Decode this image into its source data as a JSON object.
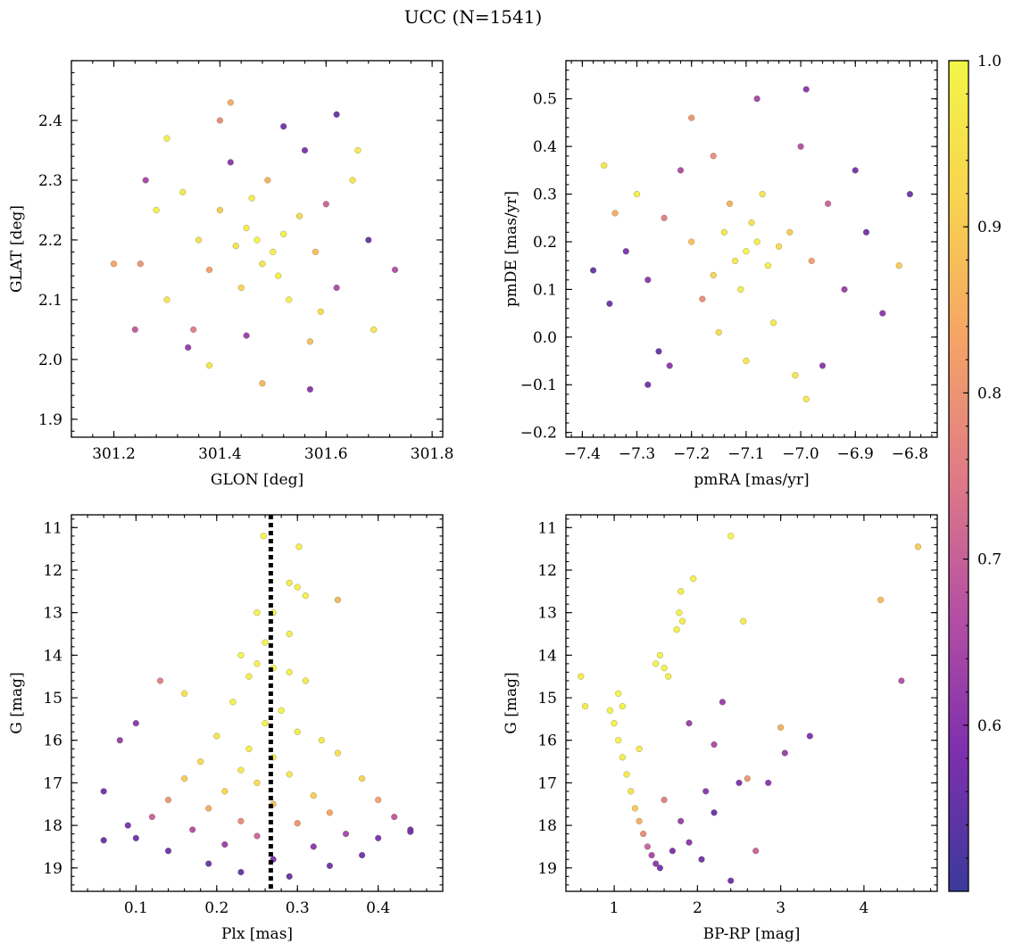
{
  "figure": {
    "title": "UCC (N=1541)"
  },
  "colorbar": {
    "range": [
      0.5,
      1.0
    ],
    "ticks": [
      0.6,
      0.7,
      0.8,
      0.9,
      1.0
    ],
    "tick_labels": [
      "0.6",
      "0.7",
      "0.8",
      "0.9",
      "1.0"
    ],
    "colormap": "plasma",
    "colormap_stops": [
      "#3b3a9a",
      "#7d2fae",
      "#b54fa3",
      "#df7b86",
      "#f5a465",
      "#f8d34f",
      "#f2f547"
    ]
  },
  "chart_data": [
    {
      "id": "glon-glat",
      "type": "scatter",
      "xlabel": "GLON [deg]",
      "ylabel": "GLAT [deg]",
      "xlim": [
        301.12,
        301.82
      ],
      "ylim": [
        1.87,
        2.5
      ],
      "xticks": [
        301.2,
        301.4,
        301.6,
        301.8
      ],
      "xtick_labels": [
        "301.2",
        "301.4",
        "301.6",
        "301.8"
      ],
      "yticks": [
        1.9,
        2.0,
        2.1,
        2.2,
        2.3,
        2.4
      ],
      "ytick_labels": [
        "1.9",
        "2.0",
        "2.1",
        "2.2",
        "2.3",
        "2.4"
      ],
      "points": [
        [
          301.47,
          2.2,
          1.0
        ],
        [
          301.5,
          2.18,
          0.98
        ],
        [
          301.45,
          2.22,
          0.97
        ],
        [
          301.52,
          2.21,
          0.99
        ],
        [
          301.48,
          2.16,
          0.96
        ],
        [
          301.43,
          2.19,
          0.95
        ],
        [
          301.55,
          2.24,
          0.93
        ],
        [
          301.4,
          2.25,
          0.9
        ],
        [
          301.46,
          2.27,
          0.97
        ],
        [
          301.51,
          2.14,
          0.98
        ],
        [
          301.44,
          2.12,
          0.92
        ],
        [
          301.58,
          2.18,
          0.88
        ],
        [
          301.36,
          2.2,
          0.94
        ],
        [
          301.49,
          2.3,
          0.85
        ],
        [
          301.53,
          2.1,
          0.99
        ],
        [
          301.38,
          2.15,
          0.82
        ],
        [
          301.6,
          2.26,
          0.7
        ],
        [
          301.33,
          2.28,
          0.97
        ],
        [
          301.62,
          2.12,
          0.65
        ],
        [
          301.3,
          2.1,
          0.96
        ],
        [
          301.42,
          2.33,
          0.6
        ],
        [
          301.56,
          2.35,
          0.58
        ],
        [
          301.35,
          2.05,
          0.75
        ],
        [
          301.65,
          2.3,
          0.96
        ],
        [
          301.28,
          2.25,
          0.98
        ],
        [
          301.45,
          2.04,
          0.62
        ],
        [
          301.57,
          2.03,
          0.88
        ],
        [
          301.25,
          2.16,
          0.8
        ],
        [
          301.68,
          2.2,
          0.55
        ],
        [
          301.4,
          2.4,
          0.78
        ],
        [
          301.52,
          2.39,
          0.57
        ],
        [
          301.38,
          1.99,
          0.97
        ],
        [
          301.48,
          1.96,
          0.86
        ],
        [
          301.2,
          2.16,
          0.83
        ],
        [
          301.73,
          2.15,
          0.66
        ],
        [
          301.62,
          2.41,
          0.55
        ],
        [
          301.57,
          1.95,
          0.6
        ],
        [
          301.42,
          2.43,
          0.84
        ],
        [
          301.3,
          2.37,
          0.98
        ],
        [
          301.69,
          2.05,
          0.96
        ],
        [
          301.24,
          2.05,
          0.68
        ],
        [
          301.34,
          2.02,
          0.61
        ],
        [
          301.66,
          2.35,
          0.97
        ],
        [
          301.26,
          2.3,
          0.64
        ],
        [
          301.59,
          2.08,
          0.94
        ]
      ]
    },
    {
      "id": "pmra-pmde",
      "type": "scatter",
      "xlabel": "pmRA [mas/yr]",
      "ylabel": "pmDE [mas/yr]",
      "xlim": [
        -7.43,
        -6.75
      ],
      "ylim": [
        -0.21,
        0.58
      ],
      "xticks": [
        -7.4,
        -7.3,
        -7.2,
        -7.1,
        -7.0,
        -6.9,
        -6.8
      ],
      "xtick_labels": [
        "−7.4",
        "−7.3",
        "−7.2",
        "−7.1",
        "−7.0",
        "−6.9",
        "−6.8"
      ],
      "yticks": [
        -0.2,
        -0.1,
        0.0,
        0.1,
        0.2,
        0.3,
        0.4,
        0.5
      ],
      "ytick_labels": [
        "−0.2",
        "−0.1",
        "0.0",
        "0.1",
        "0.2",
        "0.3",
        "0.4",
        "0.5"
      ],
      "points": [
        [
          -7.1,
          0.18,
          1.0
        ],
        [
          -7.08,
          0.2,
          0.98
        ],
        [
          -7.12,
          0.16,
          0.97
        ],
        [
          -7.06,
          0.15,
          0.99
        ],
        [
          -7.14,
          0.22,
          0.96
        ],
        [
          -7.09,
          0.24,
          0.95
        ],
        [
          -7.04,
          0.19,
          0.93
        ],
        [
          -7.16,
          0.13,
          0.92
        ],
        [
          -7.11,
          0.1,
          0.98
        ],
        [
          -7.02,
          0.22,
          0.9
        ],
        [
          -7.2,
          0.2,
          0.88
        ],
        [
          -7.13,
          0.28,
          0.85
        ],
        [
          -6.98,
          0.16,
          0.82
        ],
        [
          -7.18,
          0.08,
          0.78
        ],
        [
          -7.07,
          0.3,
          0.96
        ],
        [
          -7.25,
          0.25,
          0.75
        ],
        [
          -6.95,
          0.28,
          0.7
        ],
        [
          -7.22,
          0.35,
          0.65
        ],
        [
          -6.92,
          0.1,
          0.62
        ],
        [
          -7.28,
          0.12,
          0.6
        ],
        [
          -7.05,
          0.03,
          0.97
        ],
        [
          -7.15,
          0.01,
          0.94
        ],
        [
          -7.32,
          0.18,
          0.58
        ],
        [
          -6.88,
          0.22,
          0.57
        ],
        [
          -7.3,
          0.3,
          0.98
        ],
        [
          -7.35,
          0.07,
          0.56
        ],
        [
          -6.85,
          0.05,
          0.6
        ],
        [
          -7.0,
          0.4,
          0.66
        ],
        [
          -7.26,
          -0.03,
          0.55
        ],
        [
          -7.1,
          -0.05,
          0.96
        ],
        [
          -6.96,
          -0.06,
          0.6
        ],
        [
          -7.38,
          0.14,
          0.55
        ],
        [
          -6.8,
          0.3,
          0.56
        ],
        [
          -7.08,
          0.5,
          0.64
        ],
        [
          -6.99,
          0.52,
          0.6
        ],
        [
          -7.28,
          -0.1,
          0.56
        ],
        [
          -6.99,
          -0.13,
          0.97
        ],
        [
          -7.36,
          0.36,
          0.96
        ],
        [
          -6.82,
          0.15,
          0.9
        ],
        [
          -7.2,
          0.46,
          0.8
        ],
        [
          -7.01,
          -0.08,
          0.96
        ],
        [
          -7.24,
          -0.06,
          0.6
        ],
        [
          -7.16,
          0.38,
          0.78
        ],
        [
          -6.9,
          0.35,
          0.57
        ],
        [
          -7.34,
          0.26,
          0.84
        ]
      ]
    },
    {
      "id": "plx-g",
      "type": "scatter",
      "xlabel": "Plx [mas]",
      "ylabel": "G [mag]",
      "xlim": [
        0.02,
        0.48
      ],
      "ylim": [
        19.55,
        10.7
      ],
      "xticks": [
        0.1,
        0.2,
        0.3,
        0.4
      ],
      "xtick_labels": [
        "0.1",
        "0.2",
        "0.3",
        "0.4"
      ],
      "yticks": [
        11,
        12,
        13,
        14,
        15,
        16,
        17,
        18,
        19
      ],
      "ytick_labels": [
        "11",
        "12",
        "13",
        "14",
        "15",
        "16",
        "17",
        "18",
        "19"
      ],
      "vline": {
        "x": 0.267,
        "style": "dotted"
      },
      "points": [
        [
          0.258,
          11.2,
          1.0
        ],
        [
          0.302,
          11.45,
          0.98
        ],
        [
          0.35,
          12.7,
          0.86
        ],
        [
          0.3,
          12.4,
          0.98
        ],
        [
          0.31,
          12.6,
          0.99
        ],
        [
          0.29,
          12.3,
          0.97
        ],
        [
          0.27,
          13.0,
          0.99
        ],
        [
          0.25,
          13.0,
          0.99
        ],
        [
          0.29,
          13.5,
          0.98
        ],
        [
          0.26,
          13.7,
          0.99
        ],
        [
          0.23,
          14.0,
          1.0
        ],
        [
          0.25,
          14.2,
          0.99
        ],
        [
          0.27,
          14.3,
          1.0
        ],
        [
          0.29,
          14.4,
          0.99
        ],
        [
          0.24,
          14.5,
          0.98
        ],
        [
          0.31,
          14.6,
          0.97
        ],
        [
          0.22,
          15.1,
          0.99
        ],
        [
          0.28,
          15.3,
          0.99
        ],
        [
          0.26,
          15.6,
          0.99
        ],
        [
          0.3,
          15.8,
          0.98
        ],
        [
          0.2,
          15.9,
          0.95
        ],
        [
          0.33,
          16.0,
          0.97
        ],
        [
          0.24,
          16.2,
          0.98
        ],
        [
          0.27,
          16.4,
          0.98
        ],
        [
          0.18,
          16.5,
          0.93
        ],
        [
          0.35,
          16.3,
          0.95
        ],
        [
          0.23,
          16.7,
          0.97
        ],
        [
          0.29,
          16.8,
          0.96
        ],
        [
          0.16,
          16.9,
          0.9
        ],
        [
          0.38,
          16.9,
          0.92
        ],
        [
          0.25,
          17.0,
          0.94
        ],
        [
          0.21,
          17.2,
          0.92
        ],
        [
          0.32,
          17.3,
          0.91
        ],
        [
          0.14,
          17.4,
          0.8
        ],
        [
          0.4,
          17.4,
          0.82
        ],
        [
          0.27,
          17.5,
          0.88
        ],
        [
          0.19,
          17.6,
          0.84
        ],
        [
          0.34,
          17.7,
          0.83
        ],
        [
          0.12,
          17.8,
          0.7
        ],
        [
          0.42,
          17.8,
          0.68
        ],
        [
          0.23,
          17.9,
          0.78
        ],
        [
          0.3,
          17.95,
          0.8
        ],
        [
          0.09,
          18.0,
          0.58
        ],
        [
          0.44,
          18.1,
          0.57
        ],
        [
          0.17,
          18.1,
          0.66
        ],
        [
          0.36,
          18.2,
          0.64
        ],
        [
          0.25,
          18.25,
          0.7
        ],
        [
          0.1,
          18.3,
          0.56
        ],
        [
          0.4,
          18.3,
          0.58
        ],
        [
          0.06,
          18.35,
          0.55
        ],
        [
          0.21,
          18.45,
          0.62
        ],
        [
          0.32,
          18.5,
          0.6
        ],
        [
          0.14,
          18.6,
          0.56
        ],
        [
          0.38,
          18.7,
          0.56
        ],
        [
          0.27,
          18.8,
          0.58
        ],
        [
          0.19,
          18.9,
          0.55
        ],
        [
          0.34,
          18.95,
          0.56
        ],
        [
          0.23,
          19.1,
          0.55
        ],
        [
          0.29,
          19.2,
          0.55
        ],
        [
          0.08,
          16.0,
          0.62
        ],
        [
          0.13,
          14.6,
          0.75
        ],
        [
          0.16,
          14.9,
          0.95
        ],
        [
          0.06,
          17.2,
          0.56
        ],
        [
          0.44,
          18.15,
          0.57
        ],
        [
          0.1,
          15.6,
          0.6
        ]
      ]
    },
    {
      "id": "bprp-g",
      "type": "scatter",
      "xlabel": "BP-RP [mag]",
      "ylabel": "G [mag]",
      "xlim": [
        0.42,
        4.88
      ],
      "ylim": [
        19.55,
        10.7
      ],
      "xticks": [
        1,
        2,
        3,
        4
      ],
      "xtick_labels": [
        "1",
        "2",
        "3",
        "4"
      ],
      "yticks": [
        11,
        12,
        13,
        14,
        15,
        16,
        17,
        18,
        19
      ],
      "ytick_labels": [
        "11",
        "12",
        "13",
        "14",
        "15",
        "16",
        "17",
        "18",
        "19"
      ],
      "points": [
        [
          2.4,
          11.2,
          1.0
        ],
        [
          4.65,
          11.45,
          0.9
        ],
        [
          4.2,
          12.7,
          0.87
        ],
        [
          1.95,
          12.2,
          0.99
        ],
        [
          1.8,
          12.5,
          0.98
        ],
        [
          1.78,
          13.0,
          0.99
        ],
        [
          1.82,
          13.2,
          0.98
        ],
        [
          1.75,
          13.4,
          0.99
        ],
        [
          2.55,
          13.2,
          0.97
        ],
        [
          1.55,
          14.0,
          0.99
        ],
        [
          1.6,
          14.3,
          0.99
        ],
        [
          1.65,
          14.5,
          0.98
        ],
        [
          1.5,
          14.2,
          0.99
        ],
        [
          1.05,
          14.9,
          1.0
        ],
        [
          1.1,
          15.2,
          0.99
        ],
        [
          1.0,
          15.6,
          0.99
        ],
        [
          1.05,
          16.0,
          0.99
        ],
        [
          1.1,
          16.4,
          0.98
        ],
        [
          0.95,
          15.3,
          0.99
        ],
        [
          0.6,
          14.5,
          0.98
        ],
        [
          0.65,
          15.2,
          0.97
        ],
        [
          1.15,
          16.8,
          0.97
        ],
        [
          1.2,
          17.2,
          0.95
        ],
        [
          1.25,
          17.6,
          0.9
        ],
        [
          1.3,
          17.9,
          0.85
        ],
        [
          1.35,
          18.2,
          0.78
        ],
        [
          1.4,
          18.5,
          0.7
        ],
        [
          1.45,
          18.7,
          0.64
        ],
        [
          1.5,
          18.9,
          0.6
        ],
        [
          1.55,
          19.0,
          0.57
        ],
        [
          1.7,
          18.6,
          0.58
        ],
        [
          1.9,
          18.4,
          0.6
        ],
        [
          2.05,
          18.8,
          0.56
        ],
        [
          2.4,
          19.3,
          0.56
        ],
        [
          2.2,
          17.7,
          0.55
        ],
        [
          2.5,
          17.0,
          0.58
        ],
        [
          2.2,
          16.1,
          0.65
        ],
        [
          2.85,
          17.0,
          0.6
        ],
        [
          3.0,
          15.7,
          0.85
        ],
        [
          3.05,
          16.3,
          0.62
        ],
        [
          3.35,
          15.9,
          0.58
        ],
        [
          2.7,
          18.6,
          0.7
        ],
        [
          2.3,
          15.1,
          0.62
        ],
        [
          4.45,
          14.6,
          0.66
        ],
        [
          2.6,
          16.9,
          0.8
        ],
        [
          1.9,
          15.6,
          0.62
        ],
        [
          2.1,
          17.2,
          0.6
        ],
        [
          1.6,
          17.4,
          0.75
        ],
        [
          1.8,
          17.9,
          0.62
        ],
        [
          1.3,
          16.2,
          0.97
        ]
      ]
    }
  ]
}
